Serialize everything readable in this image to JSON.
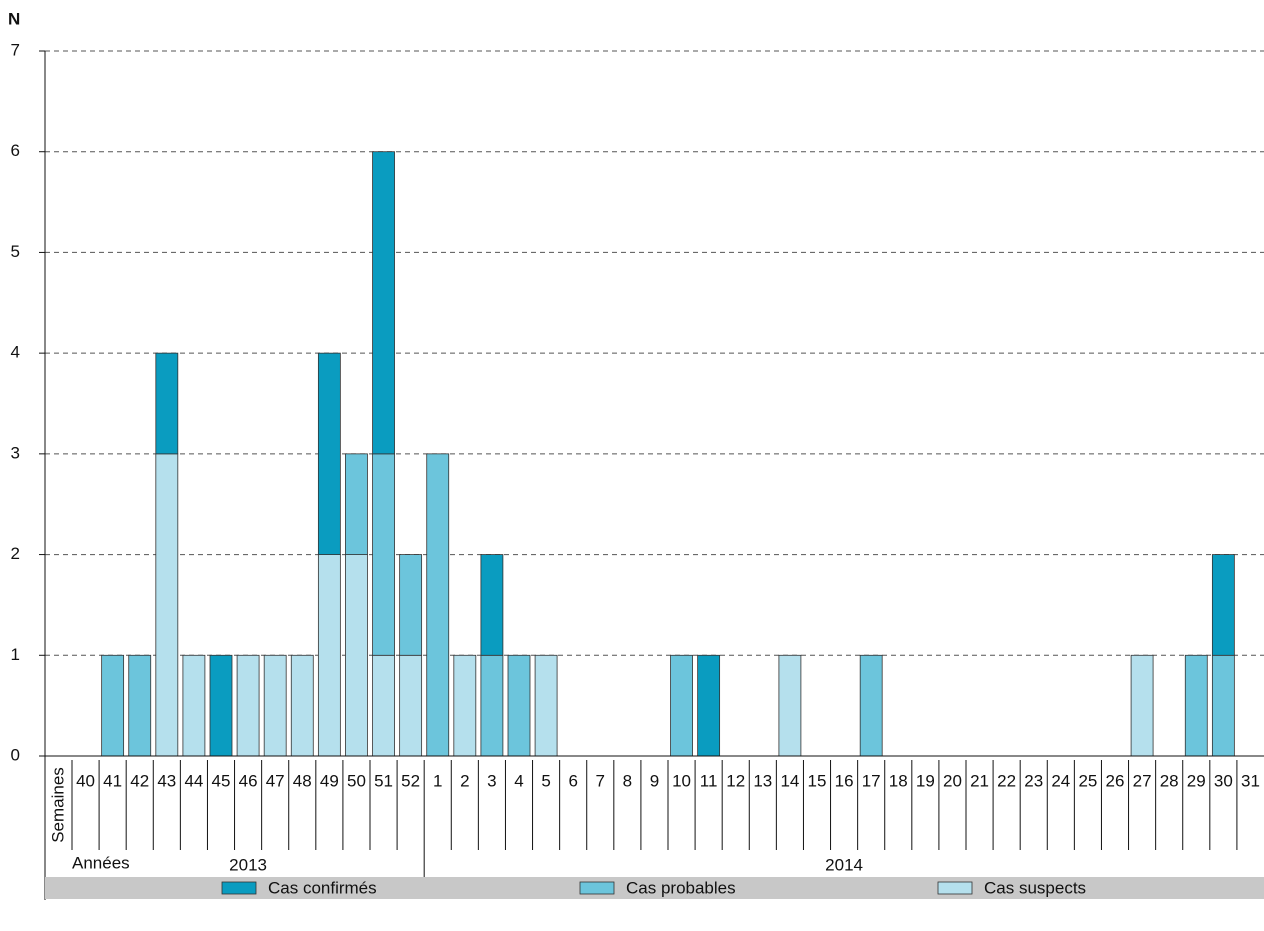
{
  "chart_data": {
    "type": "bar",
    "stacked": true,
    "y_axis_label": "N",
    "x_row_label": "Semaines",
    "year_row_label": "Années",
    "years": [
      "2013",
      "2014"
    ],
    "categories": [
      "40",
      "41",
      "42",
      "43",
      "44",
      "45",
      "46",
      "47",
      "48",
      "49",
      "50",
      "51",
      "52",
      "1",
      "2",
      "3",
      "4",
      "5",
      "6",
      "7",
      "8",
      "9",
      "10",
      "11",
      "12",
      "13",
      "14",
      "15",
      "16",
      "17",
      "18",
      "19",
      "20",
      "21",
      "22",
      "23",
      "24",
      "25",
      "26",
      "27",
      "28",
      "29",
      "30",
      "31"
    ],
    "series": [
      {
        "name": "Cas suspects",
        "color": "#b5e0ed",
        "values": [
          0,
          0,
          0,
          3,
          1,
          0,
          1,
          1,
          1,
          2,
          2,
          1,
          1,
          0,
          1,
          0,
          0,
          1,
          0,
          0,
          0,
          0,
          0,
          0,
          0,
          0,
          1,
          0,
          0,
          0,
          0,
          0,
          0,
          0,
          0,
          0,
          0,
          0,
          0,
          1,
          0,
          0,
          0,
          0
        ]
      },
      {
        "name": "Cas probables",
        "color": "#6cc5dc",
        "values": [
          0,
          1,
          1,
          0,
          0,
          0,
          0,
          0,
          0,
          0,
          1,
          2,
          1,
          3,
          0,
          1,
          1,
          0,
          0,
          0,
          0,
          0,
          1,
          0,
          0,
          0,
          0,
          0,
          0,
          1,
          0,
          0,
          0,
          0,
          0,
          0,
          0,
          0,
          0,
          0,
          0,
          1,
          1,
          0
        ]
      },
      {
        "name": "Cas confirmés",
        "color": "#0a9cc0",
        "values": [
          0,
          0,
          0,
          1,
          0,
          1,
          0,
          0,
          0,
          2,
          0,
          3,
          0,
          0,
          0,
          1,
          0,
          0,
          0,
          0,
          0,
          0,
          0,
          1,
          0,
          0,
          0,
          0,
          0,
          0,
          0,
          0,
          0,
          0,
          0,
          0,
          0,
          0,
          0,
          0,
          0,
          0,
          1,
          0
        ]
      }
    ],
    "legend_order": [
      2,
      1,
      0
    ],
    "ylim": [
      0,
      7
    ],
    "yticks": [
      0,
      1,
      2,
      3,
      4,
      5,
      6,
      7
    ],
    "grid": true
  }
}
